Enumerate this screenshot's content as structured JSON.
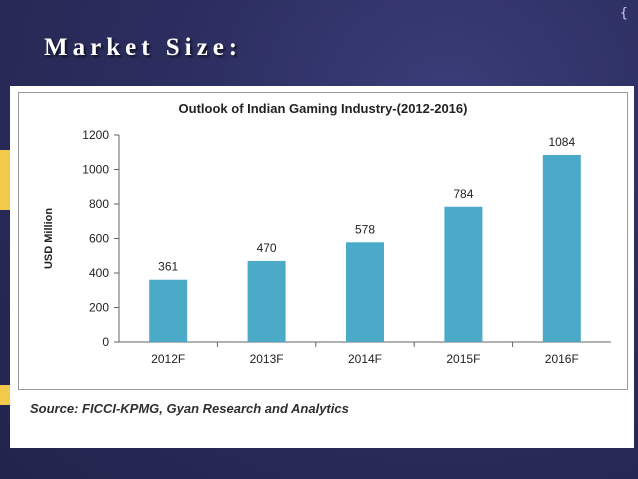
{
  "slide": {
    "title": "Market Size:",
    "corner_glyph": "{"
  },
  "source_text": "Source: FICCI-KPMG, Gyan Research and Analytics",
  "colors": {
    "background": "#2a2c5a",
    "bar": "#4aaac8",
    "axis": "#666666"
  },
  "chart_data": {
    "type": "bar",
    "title": "Outlook of Indian Gaming Industry-(2012-2016)",
    "xlabel": "",
    "ylabel": "USD Million",
    "categories": [
      "2012F",
      "2013F",
      "2014F",
      "2015F",
      "2016F"
    ],
    "values": [
      361,
      470,
      578,
      784,
      1084
    ],
    "data_labels": [
      "361",
      "470",
      "578",
      "784",
      "1084"
    ],
    "ylim": [
      0,
      1200
    ],
    "yticks": [
      0,
      200,
      400,
      600,
      800,
      1000,
      1200
    ],
    "grid": false,
    "legend": "none"
  }
}
